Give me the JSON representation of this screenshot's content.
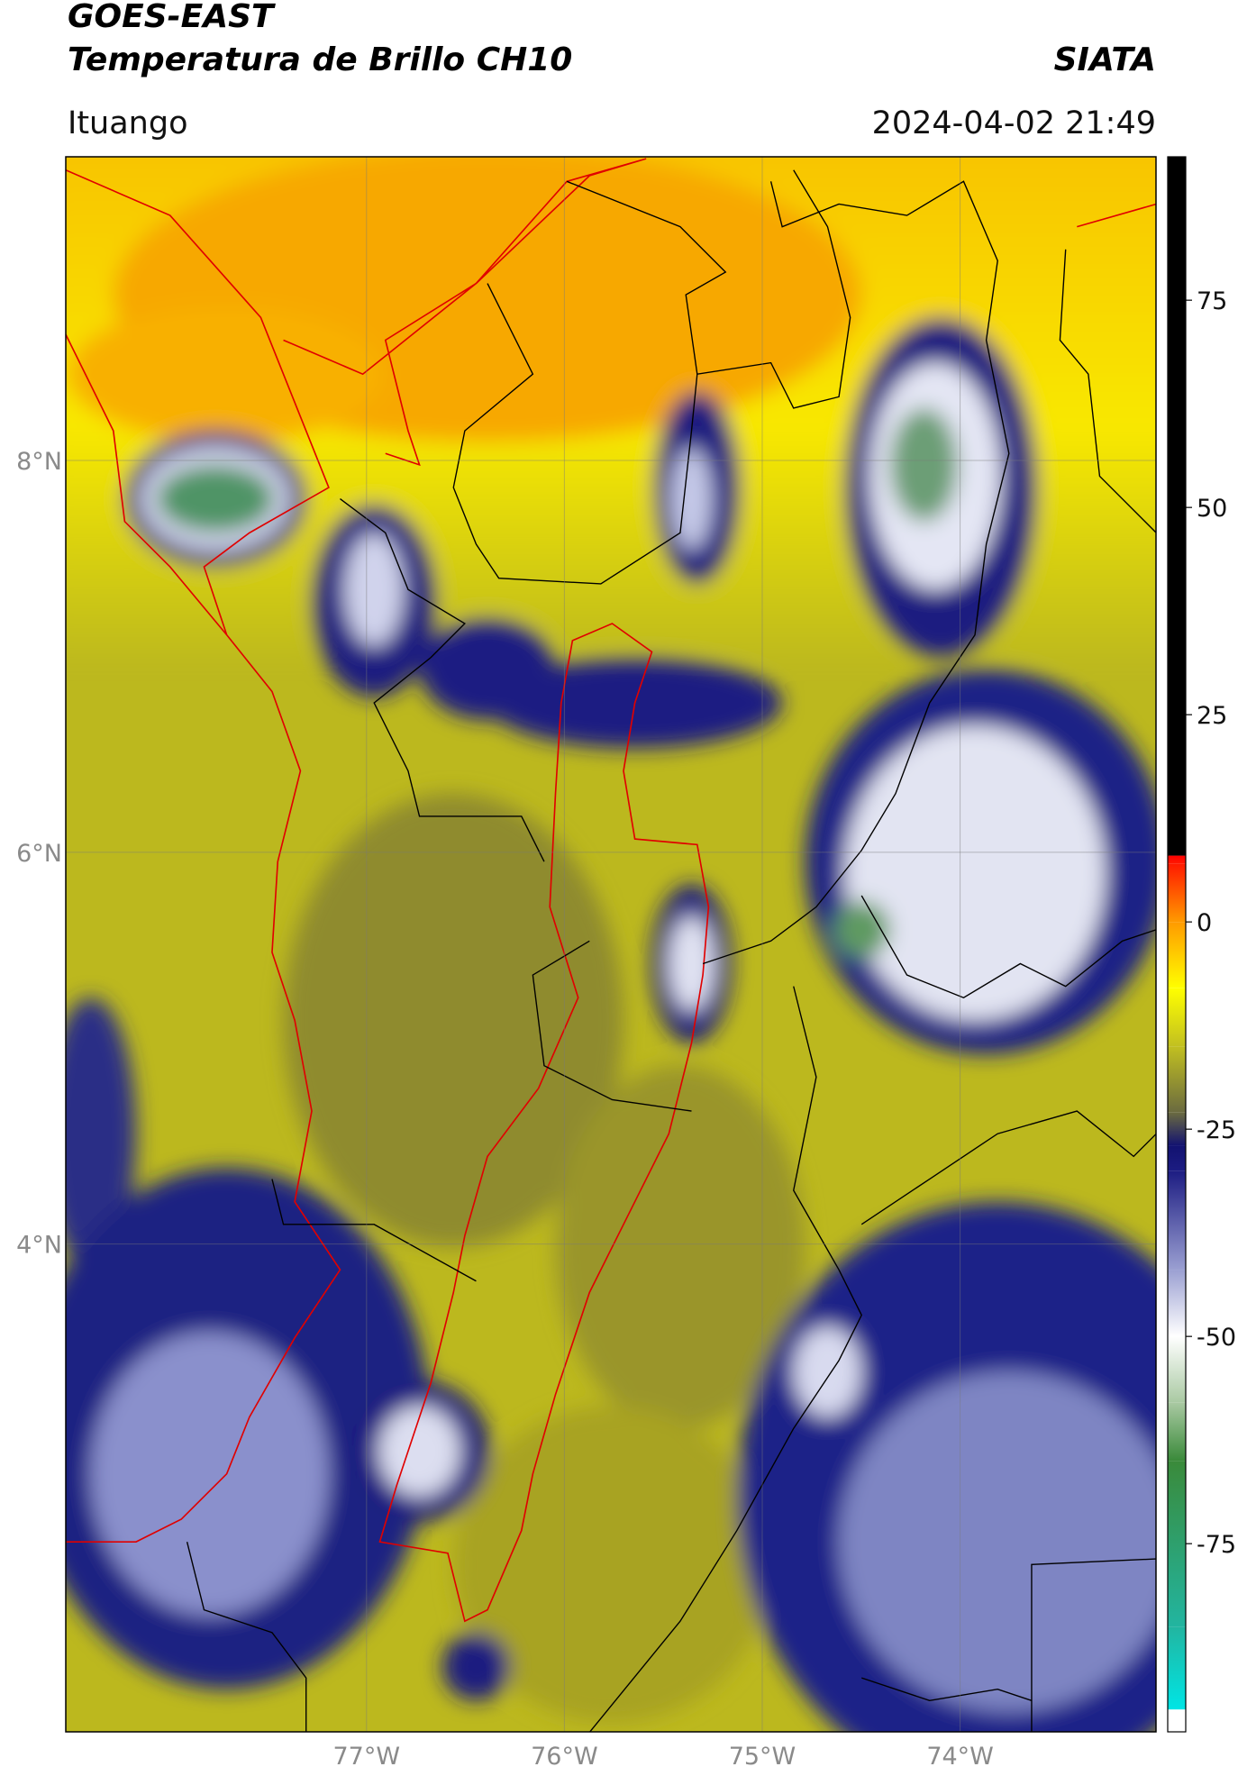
{
  "header": {
    "title": "GOES-EAST",
    "subtitle": "Temperatura de Brillo CH10",
    "source": "SIATA",
    "location": "Ituango",
    "datetime": "2024-04-02 21:49"
  },
  "map": {
    "xlim": [
      -78.52,
      -73.01
    ],
    "ylim": [
      1.51,
      9.55
    ],
    "xticks": [
      {
        "value": -77,
        "label": "77°W"
      },
      {
        "value": -76,
        "label": "76°W"
      },
      {
        "value": -75,
        "label": "75°W"
      },
      {
        "value": -74,
        "label": "74°W"
      }
    ],
    "yticks": [
      {
        "value": 4,
        "label": "4°N"
      },
      {
        "value": 6,
        "label": "6°N"
      },
      {
        "value": 8,
        "label": "8°N"
      }
    ],
    "grid": true
  },
  "colorbar": {
    "lim": [
      -97.7,
      92.3
    ],
    "ticks": [
      -75,
      -50,
      -25,
      0,
      25,
      50,
      75
    ],
    "stops": [
      {
        "value": -97.7,
        "color": "#ffffff"
      },
      {
        "value": -95,
        "color": "#ffffff"
      },
      {
        "value": -95,
        "color": "#00e5e5"
      },
      {
        "value": -85,
        "color": "#22b5a0"
      },
      {
        "value": -65,
        "color": "#3a8a3a"
      },
      {
        "value": -58,
        "color": "#a9c9a2"
      },
      {
        "value": -50,
        "color": "#ffffff"
      },
      {
        "value": -42,
        "color": "#9ba0d2"
      },
      {
        "value": -30,
        "color": "#1c1c82"
      },
      {
        "value": -27,
        "color": "#121270"
      },
      {
        "value": -23,
        "color": "#6a6a40"
      },
      {
        "value": -15,
        "color": "#c2c020"
      },
      {
        "value": -8,
        "color": "#ffff00"
      },
      {
        "value": 0,
        "color": "#ff9a00"
      },
      {
        "value": 7,
        "color": "#ff1a00"
      },
      {
        "value": 8,
        "color": "#ff0000"
      },
      {
        "value": 8,
        "color": "#000000"
      },
      {
        "value": 92.3,
        "color": "#000000"
      }
    ]
  }
}
